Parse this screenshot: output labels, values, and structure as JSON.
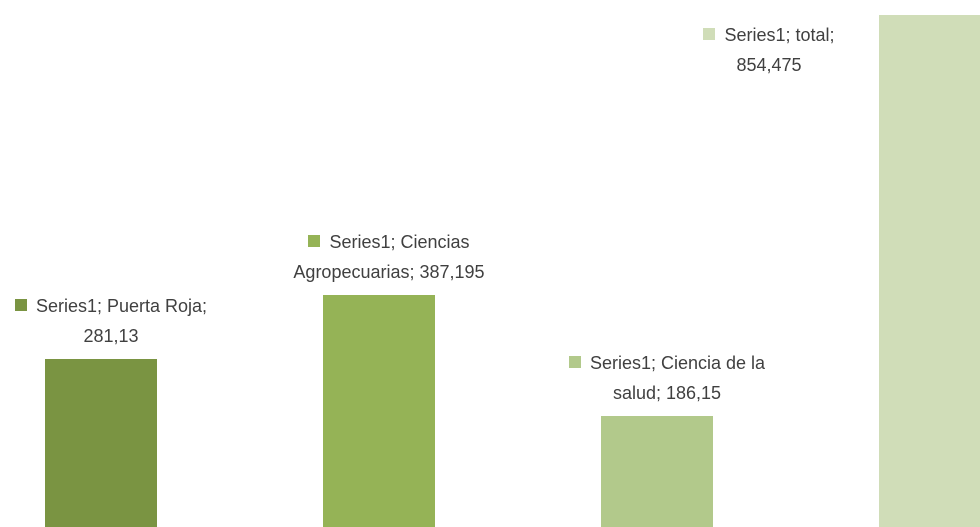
{
  "chart_data": {
    "type": "bar",
    "categories": [
      "Puerta Roja",
      "Ciencias Agropecuarias",
      "Ciencia de la salud",
      "total"
    ],
    "series": [
      {
        "name": "Series1",
        "colors": [
          "#7a9442",
          "#95b356",
          "#b2c98b",
          "#d0ddb8"
        ],
        "values": [
          281.13,
          387.195,
          186.15,
          854.475
        ],
        "value_labels": [
          "Series1; Puerta Roja; 281,13",
          "Series1; Ciencias Agropecuarias; 387,195",
          "Series1; Ciencia de la salud; 186,15",
          "Series1; total; 854,475"
        ]
      }
    ],
    "ylim": [
      0,
      880
    ]
  }
}
